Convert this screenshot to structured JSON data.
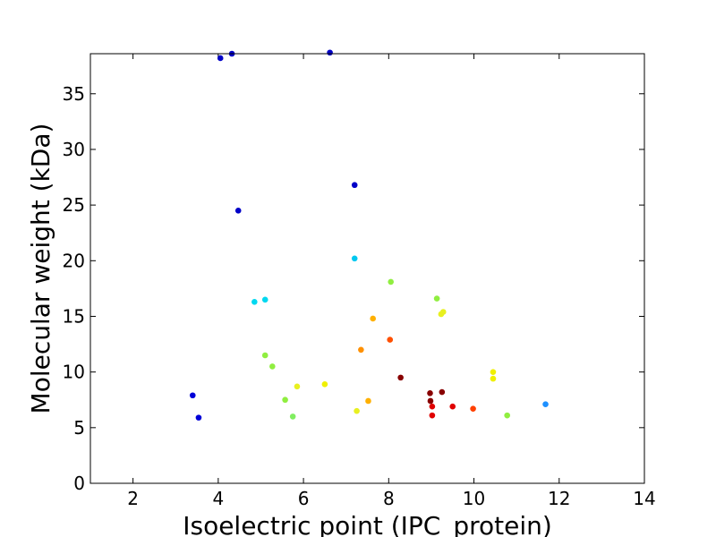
{
  "chart_data": {
    "type": "scatter",
    "xlabel": "Isoelectric point (IPC_protein)",
    "ylabel": "Molecular weight (kDa)",
    "xlim": [
      1,
      14
    ],
    "ylim": [
      0,
      38.6
    ],
    "xticks": [
      "2",
      "4",
      "6",
      "8",
      "10",
      "12",
      "14"
    ],
    "yticks": [
      "0",
      "5",
      "10",
      "15",
      "20",
      "25",
      "30",
      "35"
    ],
    "grid": false,
    "points": [
      {
        "x": 4.05,
        "y": 38.2,
        "color": "#0000c8"
      },
      {
        "x": 4.32,
        "y": 38.6,
        "color": "#0000c8"
      },
      {
        "x": 6.62,
        "y": 38.7,
        "color": "#0000c8"
      },
      {
        "x": 7.2,
        "y": 26.8,
        "color": "#0000c8"
      },
      {
        "x": 4.47,
        "y": 24.5,
        "color": "#0000c8"
      },
      {
        "x": 3.4,
        "y": 7.9,
        "color": "#0000d8"
      },
      {
        "x": 3.54,
        "y": 5.9,
        "color": "#0000d8"
      },
      {
        "x": 7.2,
        "y": 20.2,
        "color": "#00c8f0"
      },
      {
        "x": 4.85,
        "y": 16.3,
        "color": "#00d8f0"
      },
      {
        "x": 5.1,
        "y": 16.5,
        "color": "#00d8f0"
      },
      {
        "x": 11.68,
        "y": 7.1,
        "color": "#1e90ff"
      },
      {
        "x": 8.05,
        "y": 18.1,
        "color": "#90ee40"
      },
      {
        "x": 9.13,
        "y": 16.6,
        "color": "#90ee40"
      },
      {
        "x": 5.1,
        "y": 11.5,
        "color": "#90ee40"
      },
      {
        "x": 5.27,
        "y": 10.5,
        "color": "#90ee40"
      },
      {
        "x": 5.57,
        "y": 7.5,
        "color": "#90ee40"
      },
      {
        "x": 5.75,
        "y": 6.0,
        "color": "#80ee60"
      },
      {
        "x": 10.78,
        "y": 6.1,
        "color": "#90ee40"
      },
      {
        "x": 5.85,
        "y": 8.7,
        "color": "#e8f020"
      },
      {
        "x": 6.5,
        "y": 8.9,
        "color": "#f0f000"
      },
      {
        "x": 7.25,
        "y": 6.5,
        "color": "#e8f020"
      },
      {
        "x": 9.23,
        "y": 15.2,
        "color": "#e8f020"
      },
      {
        "x": 9.28,
        "y": 15.4,
        "color": "#e8f020"
      },
      {
        "x": 10.45,
        "y": 10.0,
        "color": "#f0f000"
      },
      {
        "x": 10.45,
        "y": 9.4,
        "color": "#f0f000"
      },
      {
        "x": 7.63,
        "y": 14.8,
        "color": "#ffb000"
      },
      {
        "x": 7.35,
        "y": 12.0,
        "color": "#ff9000"
      },
      {
        "x": 7.52,
        "y": 7.4,
        "color": "#ffb000"
      },
      {
        "x": 8.03,
        "y": 12.9,
        "color": "#ff5000"
      },
      {
        "x": 9.98,
        "y": 6.7,
        "color": "#ff4000"
      },
      {
        "x": 9.5,
        "y": 6.9,
        "color": "#e00000"
      },
      {
        "x": 9.02,
        "y": 6.9,
        "color": "#e00000"
      },
      {
        "x": 9.02,
        "y": 6.1,
        "color": "#e00000"
      },
      {
        "x": 8.28,
        "y": 9.5,
        "color": "#880000"
      },
      {
        "x": 8.97,
        "y": 8.1,
        "color": "#880000"
      },
      {
        "x": 9.25,
        "y": 8.2,
        "color": "#880000"
      },
      {
        "x": 8.98,
        "y": 7.4,
        "color": "#880000"
      }
    ]
  }
}
